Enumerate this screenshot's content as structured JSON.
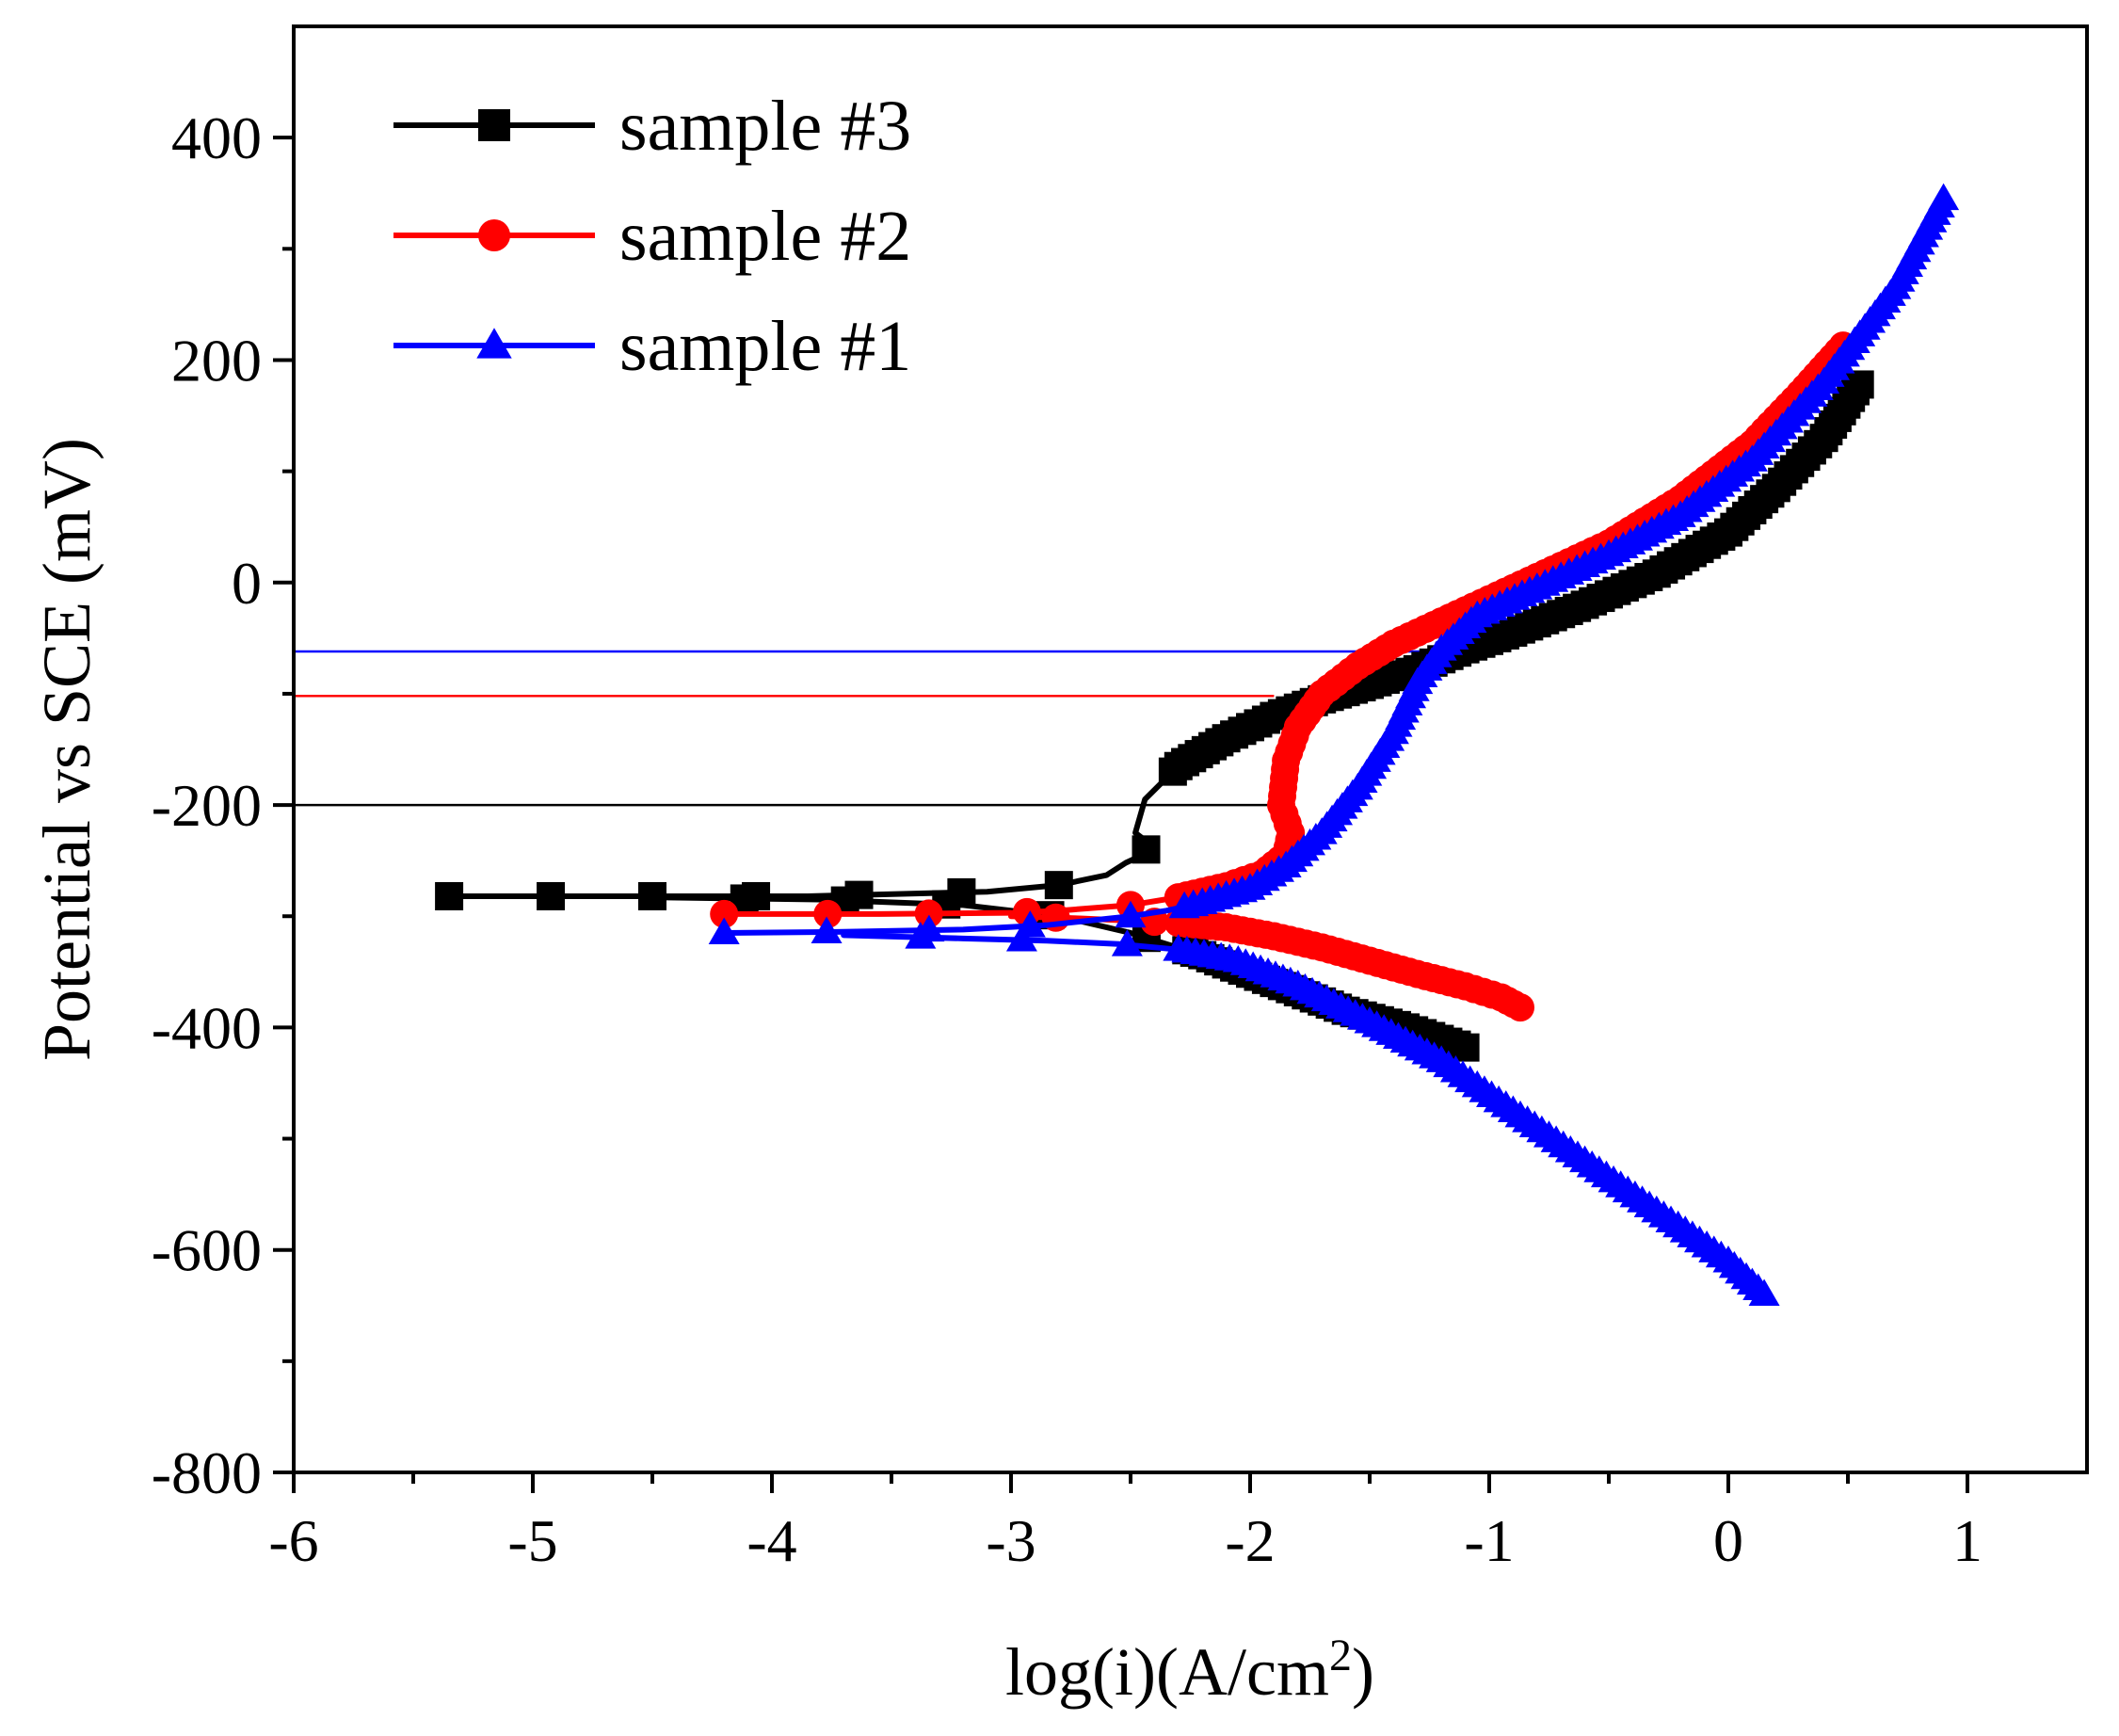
{
  "chart_data": {
    "type": "line",
    "title": "",
    "xlabel": "log(i)(A/cm",
    "xlabel_sup": "2",
    "xlabel_tail": ")",
    "ylabel": "Potential vs SCE (mV)",
    "xlim": [
      -6,
      1.5
    ],
    "ylim": [
      -800,
      500
    ],
    "xticks": [
      -6,
      -5,
      -4,
      -3,
      -2,
      -1,
      0,
      1
    ],
    "xtick_labels": [
      "-6",
      "-5",
      "-4",
      "-3",
      "-2",
      "-1",
      "0",
      "1"
    ],
    "yticks": [
      -800,
      -600,
      -400,
      -200,
      0,
      200,
      400
    ],
    "ytick_labels": [
      "-800",
      "-600",
      "-400",
      "-200",
      "0",
      "200",
      "400"
    ],
    "grid": false,
    "legend_position": "top-left",
    "reference_lines": [
      {
        "series": "sample #3",
        "y": -200,
        "x_end": -1.9,
        "color": "#000000"
      },
      {
        "series": "sample #2",
        "y": -102,
        "x_end": -1.9,
        "color": "#ff0000"
      },
      {
        "series": "sample #1",
        "y": -62,
        "x_end": -1.2,
        "color": "#0000ff"
      }
    ],
    "series": [
      {
        "name": "sample #3",
        "color": "#000000",
        "marker": "square",
        "x": [
          -5.35,
          -4.5,
          -3.85,
          -3.1,
          -2.8,
          -2.6,
          -2.52,
          -2.45,
          -2.42,
          -2.48,
          -2.44,
          -2.3,
          -2.1,
          -1.9,
          -1.7,
          -1.5,
          -1.3,
          -1.1,
          -0.9,
          -0.6,
          -0.3,
          0.0,
          0.2,
          0.4,
          0.55
        ],
        "y": [
          -282,
          -282,
          -282,
          -278,
          -272,
          -263,
          -252,
          -245,
          -235,
          -225,
          -195,
          -165,
          -140,
          -120,
          -105,
          -92,
          -78,
          -60,
          -45,
          -20,
          8,
          45,
          85,
          130,
          178
        ],
        "cathodic": {
          "x": [
            -4.5,
            -3.8,
            -3.2,
            -2.8,
            -2.5,
            -2.2,
            -1.9,
            -1.6,
            -1.35,
            -1.1
          ],
          "y": [
            -283,
            -285,
            -290,
            -300,
            -315,
            -335,
            -360,
            -385,
            -400,
            -418
          ]
        }
      },
      {
        "name": "sample #2",
        "color": "#ff0000",
        "marker": "circle",
        "x": [
          -4.2,
          -3.55,
          -3.0,
          -2.8,
          -2.5,
          -2.3,
          -2.1,
          -1.95,
          -1.85,
          -1.83,
          -1.87,
          -1.85,
          -1.8,
          -1.7,
          -1.55,
          -1.4,
          -1.2,
          -1.0,
          -0.8,
          -0.5,
          -0.2,
          0.1,
          0.3,
          0.48
        ],
        "y": [
          -298,
          -298,
          -297,
          -295,
          -290,
          -283,
          -273,
          -262,
          -245,
          -225,
          -200,
          -160,
          -130,
          -100,
          -75,
          -55,
          -35,
          -15,
          5,
          35,
          75,
          125,
          170,
          213
        ],
        "cathodic": {
          "x": [
            -3.0,
            -2.7,
            -2.5,
            -2.3,
            -2.1,
            -1.9,
            -1.7,
            -1.5,
            -1.3,
            -1.1,
            -0.95,
            -0.87
          ],
          "y": [
            -300,
            -302,
            -304,
            -306,
            -310,
            -318,
            -328,
            -340,
            -352,
            -363,
            -373,
            -382
          ]
        }
      },
      {
        "name": "sample #1",
        "color": "#0000ff",
        "marker": "triangle",
        "x": [
          -4.2,
          -3.7,
          -3.2,
          -2.85,
          -2.5,
          -2.35,
          -2.2,
          -2.0,
          -1.85,
          -1.7,
          -1.55,
          -1.4,
          -1.3,
          -1.2,
          -1.05,
          -0.8,
          -0.5,
          -0.2,
          0.1,
          0.4,
          0.7,
          0.9
        ],
        "y": [
          -315,
          -314,
          -312,
          -308,
          -300,
          -295,
          -288,
          -275,
          -255,
          -225,
          -185,
          -135,
          -90,
          -60,
          -30,
          -5,
          25,
          60,
          110,
          180,
          265,
          345
        ],
        "cathodic": {
          "x": [
            -3.7,
            -3.2,
            -2.85,
            -2.55,
            -2.3,
            -2.05,
            -1.8,
            -1.5,
            -1.2,
            -0.9,
            -0.6,
            -0.3,
            0.0,
            0.15
          ],
          "y": [
            -317,
            -320,
            -322,
            -325,
            -330,
            -340,
            -362,
            -395,
            -430,
            -475,
            -520,
            -565,
            -610,
            -640
          ]
        }
      }
    ]
  }
}
